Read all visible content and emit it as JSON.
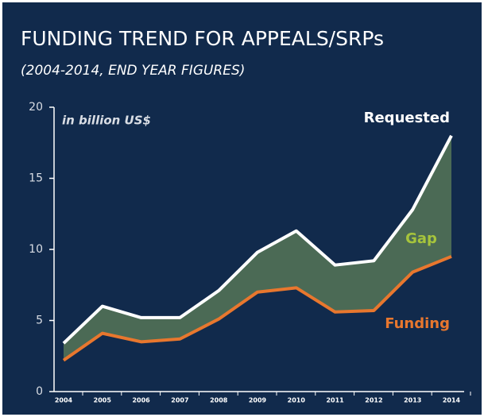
{
  "chart_data": {
    "type": "line",
    "title": "FUNDING TREND FOR APPEALS/SRPs",
    "subtitle": "(2004-2014, END YEAR FIGURES)",
    "y_label": "in billion US$",
    "categories": [
      "2004",
      "2005",
      "2006",
      "2007",
      "2008",
      "2009",
      "2010",
      "2011",
      "2012",
      "2013",
      "2014"
    ],
    "series": [
      {
        "name": "Requested",
        "color": "#ffffff",
        "values": [
          3.4,
          6.0,
          5.2,
          5.2,
          7.1,
          9.8,
          11.3,
          8.9,
          9.2,
          12.8,
          18.0
        ]
      },
      {
        "name": "Funding",
        "color": "#e8772e",
        "values": [
          2.2,
          4.1,
          3.5,
          3.7,
          5.1,
          7.0,
          7.3,
          5.6,
          5.7,
          8.4,
          9.5
        ]
      }
    ],
    "gap": {
      "label": "Gap",
      "color": "#4b6a55",
      "label_color": "#a6c43c"
    },
    "ylim": [
      0,
      20
    ],
    "yticks": [
      0,
      5,
      10,
      15,
      20
    ]
  }
}
